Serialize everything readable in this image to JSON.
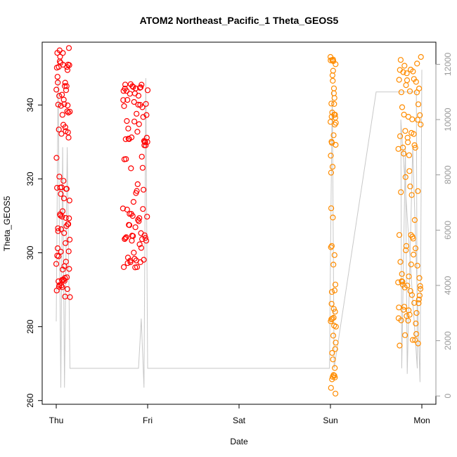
{
  "chart_data": {
    "type": "scatter",
    "title": "ATOM2 Northeast_Pacific_1 Theta_GEOS5",
    "xlabel": "Date",
    "ylabel": "Theta_GEOS5",
    "x_ticks": [
      "Thu",
      "Fri",
      "Sat",
      "Sun",
      "Mon"
    ],
    "xlim": [
      0,
      4.05
    ],
    "ylim": [
      259,
      357
    ],
    "y_ticks": [
      260,
      280,
      300,
      320,
      340
    ],
    "y2lim": [
      -300,
      12800
    ],
    "y2_ticks": [
      0,
      2000,
      4000,
      6000,
      8000,
      10000,
      12000
    ],
    "right_axis_color": "#9a9a9a",
    "series": [
      {
        "color": "#ff0000",
        "marker": "open-circle",
        "segments": [
          {
            "x0": 0.0,
            "x1": 0.15,
            "lo": 287,
            "hi": 356,
            "start": 297,
            "end": 288,
            "n": 90
          },
          {
            "x0": 0.73,
            "x1": 1.0,
            "lo": 296,
            "hi": 346,
            "start": 312,
            "end": 344,
            "n": 90
          }
        ]
      },
      {
        "color": "#ff8c00",
        "marker": "open-circle",
        "segments": [
          {
            "x0": 3.0,
            "x1": 3.06,
            "lo": 261,
            "hi": 353,
            "start": 353,
            "end": 280,
            "n": 60
          },
          {
            "x0": 3.74,
            "x1": 3.99,
            "lo": 274,
            "hi": 353,
            "start": 292,
            "end": 353,
            "n": 90
          }
        ]
      }
    ],
    "altitude_line": {
      "color": "#c8c8c8",
      "points": [
        [
          0.0,
          2700
        ],
        [
          0.02,
          11500
        ],
        [
          0.05,
          300
        ],
        [
          0.07,
          9000
        ],
        [
          0.09,
          300
        ],
        [
          0.12,
          9000
        ],
        [
          0.15,
          1000
        ],
        [
          0.16,
          1000
        ],
        [
          0.9,
          1000
        ],
        [
          0.93,
          2800
        ],
        [
          0.96,
          300
        ],
        [
          0.98,
          11500
        ],
        [
          1.0,
          1000
        ],
        [
          2.0,
          1000
        ],
        [
          2.99,
          1000
        ],
        [
          3.0,
          5000
        ],
        [
          3.02,
          11000
        ],
        [
          3.04,
          1000
        ],
        [
          3.5,
          11000
        ],
        [
          3.94,
          11000
        ],
        [
          3.95,
          1000
        ],
        [
          3.77,
          10000
        ],
        [
          3.78,
          1000
        ],
        [
          3.82,
          9000
        ],
        [
          3.84,
          800
        ],
        [
          3.9,
          9000
        ],
        [
          3.98,
          500
        ],
        [
          4.0,
          11800
        ]
      ]
    }
  }
}
